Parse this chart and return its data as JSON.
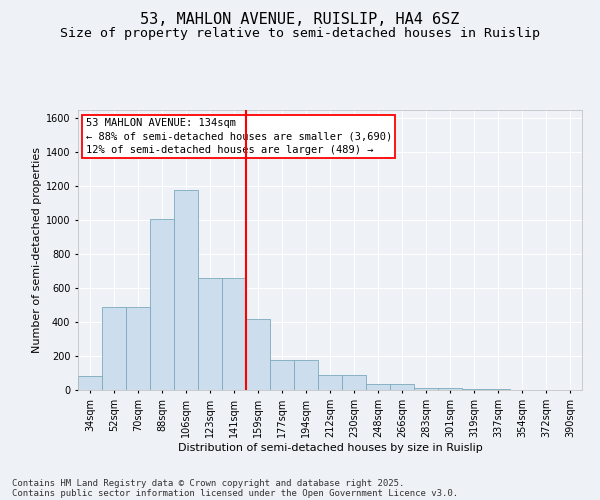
{
  "title": "53, MAHLON AVENUE, RUISLIP, HA4 6SZ",
  "subtitle": "Size of property relative to semi-detached houses in Ruislip",
  "xlabel": "Distribution of semi-detached houses by size in Ruislip",
  "ylabel": "Number of semi-detached properties",
  "categories": [
    "34sqm",
    "52sqm",
    "70sqm",
    "88sqm",
    "106sqm",
    "123sqm",
    "141sqm",
    "159sqm",
    "177sqm",
    "194sqm",
    "212sqm",
    "230sqm",
    "248sqm",
    "266sqm",
    "283sqm",
    "301sqm",
    "319sqm",
    "337sqm",
    "354sqm",
    "372sqm",
    "390sqm"
  ],
  "values": [
    80,
    490,
    490,
    1010,
    1180,
    660,
    660,
    420,
    175,
    175,
    90,
    90,
    35,
    35,
    12,
    12,
    5,
    5,
    2,
    2,
    0
  ],
  "bar_color": "#ccdded",
  "bar_edge_color": "#7aaabb",
  "vline_x_index": 6,
  "vline_color": "red",
  "annotation_title": "53 MAHLON AVENUE: 134sqm",
  "annotation_line1": "← 88% of semi-detached houses are smaller (3,690)",
  "annotation_line2": "12% of semi-detached houses are larger (489) →",
  "ylim": [
    0,
    1650
  ],
  "yticks": [
    0,
    200,
    400,
    600,
    800,
    1000,
    1200,
    1400,
    1600
  ],
  "background_color": "#eef2f6",
  "plot_bg_color": "#eef2f6",
  "grid_color": "#ffffff",
  "footer_line1": "Contains HM Land Registry data © Crown copyright and database right 2025.",
  "footer_line2": "Contains public sector information licensed under the Open Government Licence v3.0.",
  "title_fontsize": 11,
  "subtitle_fontsize": 9.5,
  "axis_label_fontsize": 8,
  "tick_fontsize": 7,
  "footer_fontsize": 6.5,
  "annotation_fontsize": 7.5
}
